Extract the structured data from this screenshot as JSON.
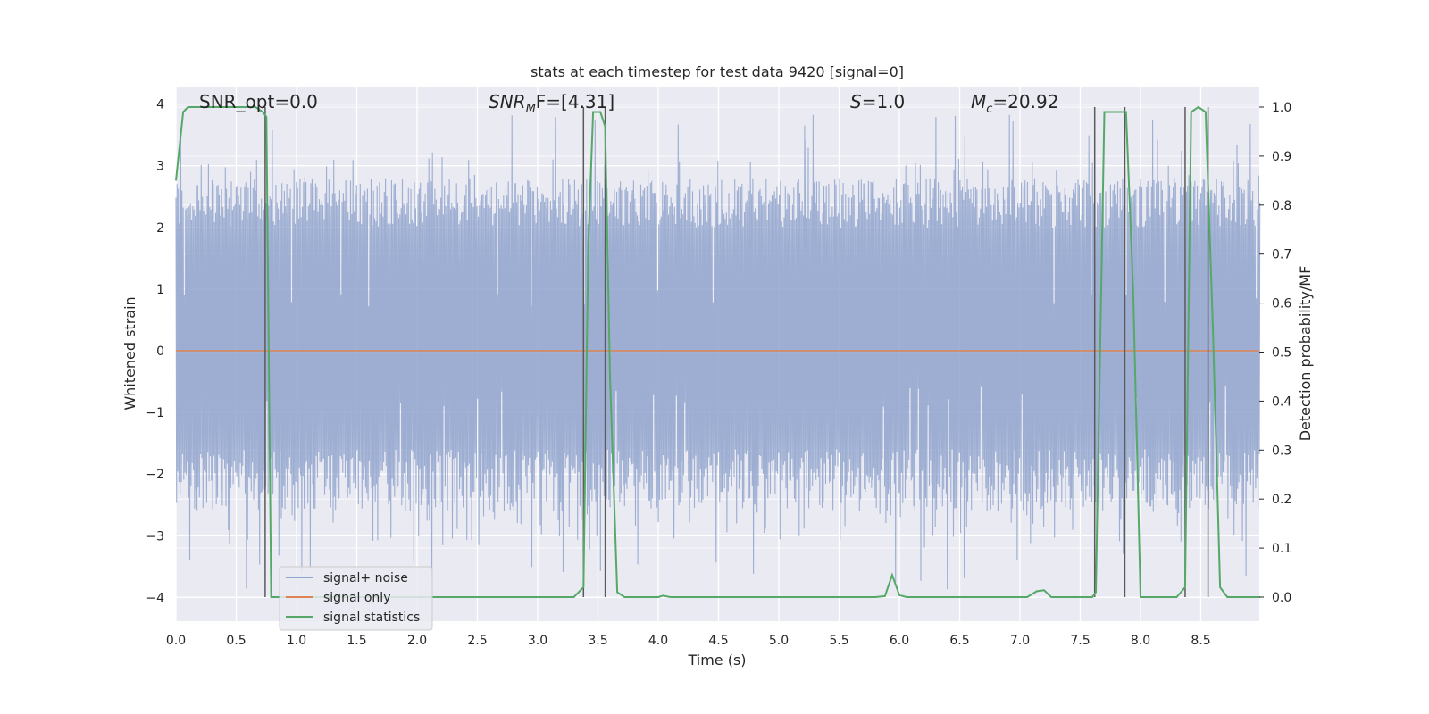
{
  "chart_data": {
    "type": "line",
    "title": "stats at each timestep for test data 9420 [signal=0]",
    "xlabel": "Time (s)",
    "ylabel_left": "Whitened strain",
    "ylabel_right": "Detection probability/MF",
    "xlim": [
      0.0,
      8.99
    ],
    "ylim_left": [
      -4.4,
      4.3
    ],
    "ylim_right": [
      -0.05,
      1.04
    ],
    "x_ticks": [
      "0.0",
      "0.5",
      "1.0",
      "1.5",
      "2.0",
      "2.5",
      "3.0",
      "3.5",
      "4.0",
      "4.5",
      "5.0",
      "5.5",
      "6.0",
      "6.5",
      "7.0",
      "7.5",
      "8.0",
      "8.5"
    ],
    "y_ticks_left": [
      "4",
      "3",
      "2",
      "1",
      "0",
      "−1",
      "−2",
      "−3",
      "−4"
    ],
    "y_ticks_right": [
      "1.0",
      "0.9",
      "0.8",
      "0.7",
      "0.6",
      "0.5",
      "0.4",
      "0.3",
      "0.2",
      "0.1",
      "0.0"
    ],
    "grid": true,
    "legend_position": "lower-left",
    "annotations": {
      "snr_opt": "SNR_opt=0.0",
      "snr_mf_base": "SNR",
      "snr_mf_sub": "M",
      "snr_mf_rest": "F=[4.31]",
      "s_label": "S",
      "s_value": "=1.0",
      "mc_base": "M",
      "mc_sub": "c",
      "mc_value": "=20.92"
    },
    "series": [
      {
        "name": "signal+ noise",
        "color": "#8fa3cc",
        "axis": "left",
        "kind": "noise",
        "upper_band": [
          2.0,
          2.8
        ],
        "lower_band": [
          -1.6,
          -2.6
        ]
      },
      {
        "name": "signal only",
        "color": "#dd8452",
        "axis": "left",
        "kind": "flat",
        "value": 0.0
      },
      {
        "name": "signal statistics",
        "color": "#55a868",
        "axis": "right",
        "x": [
          0.0,
          0.06,
          0.1,
          0.2,
          0.3,
          0.4,
          0.5,
          0.6,
          0.66,
          0.72,
          0.75,
          0.79,
          0.83,
          0.9,
          1.0,
          1.5,
          2.0,
          2.5,
          3.0,
          3.3,
          3.38,
          3.42,
          3.46,
          3.52,
          3.56,
          3.6,
          3.66,
          3.72,
          3.8,
          4.0,
          4.04,
          4.1,
          4.5,
          5.0,
          5.5,
          5.8,
          5.88,
          5.94,
          6.0,
          6.06,
          6.5,
          7.0,
          7.06,
          7.14,
          7.2,
          7.26,
          7.4,
          7.6,
          7.63,
          7.7,
          7.8,
          7.88,
          7.94,
          8.0,
          8.06,
          8.1,
          8.3,
          8.37,
          8.42,
          8.48,
          8.54,
          8.6,
          8.66,
          8.72,
          8.8,
          8.99
        ],
        "y": [
          0.85,
          0.99,
          1.0,
          1.0,
          1.0,
          1.0,
          1.0,
          1.0,
          1.0,
          0.99,
          0.98,
          0.0,
          0.0,
          0.0,
          0.0,
          0.0,
          0.0,
          0.0,
          0.0,
          0.0,
          0.02,
          0.72,
          0.99,
          0.99,
          0.96,
          0.45,
          0.01,
          0.0,
          0.0,
          0.0,
          0.003,
          0.0,
          0.0,
          0.0,
          0.0,
          0.0,
          0.002,
          0.045,
          0.004,
          0.0,
          0.0,
          0.0,
          0.0,
          0.012,
          0.014,
          0.0,
          0.0,
          0.0,
          0.01,
          0.99,
          0.99,
          0.99,
          0.62,
          0.0,
          0.0,
          0.0,
          0.0,
          0.02,
          0.99,
          1.0,
          0.99,
          0.55,
          0.02,
          0.0,
          0.0,
          0.0
        ]
      },
      {
        "name": "",
        "color": "#5a5a5a",
        "axis": "right",
        "kind": "vlines",
        "x": [
          0.74,
          3.38,
          3.56,
          7.62,
          7.87,
          8.37,
          8.56
        ],
        "y_range": [
          0.0,
          1.0
        ]
      }
    ]
  }
}
